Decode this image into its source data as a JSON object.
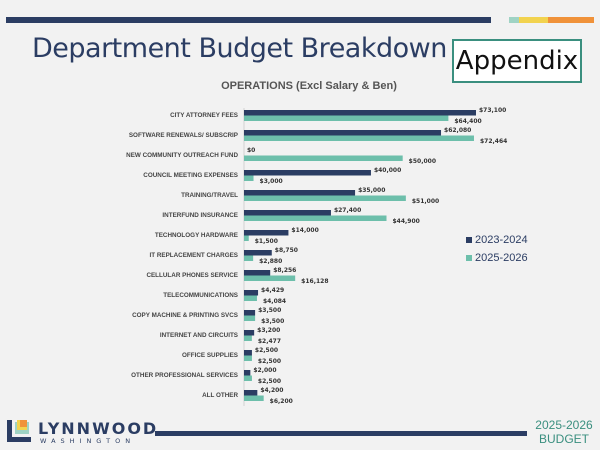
{
  "slide": {
    "title": "Department Budget Breakdown",
    "appendix_label": "Appendix",
    "logo_name": "LYNNWOOD",
    "logo_sub": "WASHINGTON",
    "footer_year": "2025-2026",
    "footer_label": "BUDGET",
    "colors": {
      "navy": "#2b3d63",
      "teal": "#6dbfab",
      "yellow": "#f2d34f",
      "orange": "#f0923a",
      "aqua": "#9fd3c4"
    }
  },
  "chart_data": {
    "type": "bar",
    "orientation": "horizontal",
    "title": "OPERATIONS (Excl Salary & Ben)",
    "legend_position": "right",
    "grid": false,
    "categories": [
      "CITY ATTORNEY FEES",
      "SOFTWARE RENEWALS/ SUBSCRIP",
      "NEW COMMUNITY OUTREACH FUND",
      "COUNCIL MEETING EXPENSES",
      "TRAINING/TRAVEL",
      "INTERFUND INSURANCE",
      "TECHNOLOGY HARDWARE",
      "IT REPLACEMENT CHARGES",
      "CELLULAR PHONES SERVICE",
      "TELECOMMUNICATIONS",
      "COPY MACHINE & PRINTING SVCS",
      "INTERNET AND CIRCUITS",
      "OFFICE SUPPLIES",
      "OTHER PROFESSIONAL SERVICES",
      "ALL OTHER"
    ],
    "series": [
      {
        "name": "2023-2024",
        "color": "#2b3d63",
        "values": [
          73100,
          62080,
          0,
          40000,
          35000,
          27400,
          14000,
          8750,
          8256,
          4429,
          3500,
          3200,
          2500,
          2000,
          4200
        ],
        "labels": [
          "$73,100",
          "$62,080",
          "$0",
          "$40,000",
          "$35,000",
          "$27,400",
          "$14,000",
          "$8,750",
          "$8,256",
          "$4,429",
          "$3,500",
          "$3,200",
          "$2,500",
          "$2,000",
          "$4,200"
        ]
      },
      {
        "name": "2025-2026",
        "color": "#6dbfab",
        "values": [
          64400,
          72464,
          50000,
          3000,
          51000,
          44900,
          1500,
          2880,
          16128,
          4084,
          3500,
          2477,
          2500,
          2500,
          6200
        ],
        "labels": [
          "$64,400",
          "$72,464",
          "$50,000",
          "$3,000",
          "$51,000",
          "$44,900",
          "$1,500",
          "$2,880",
          "$16,128",
          "$4,084",
          "$3,500",
          "$2,477",
          "$2,500",
          "$2,500",
          "$6,200"
        ]
      }
    ]
  }
}
